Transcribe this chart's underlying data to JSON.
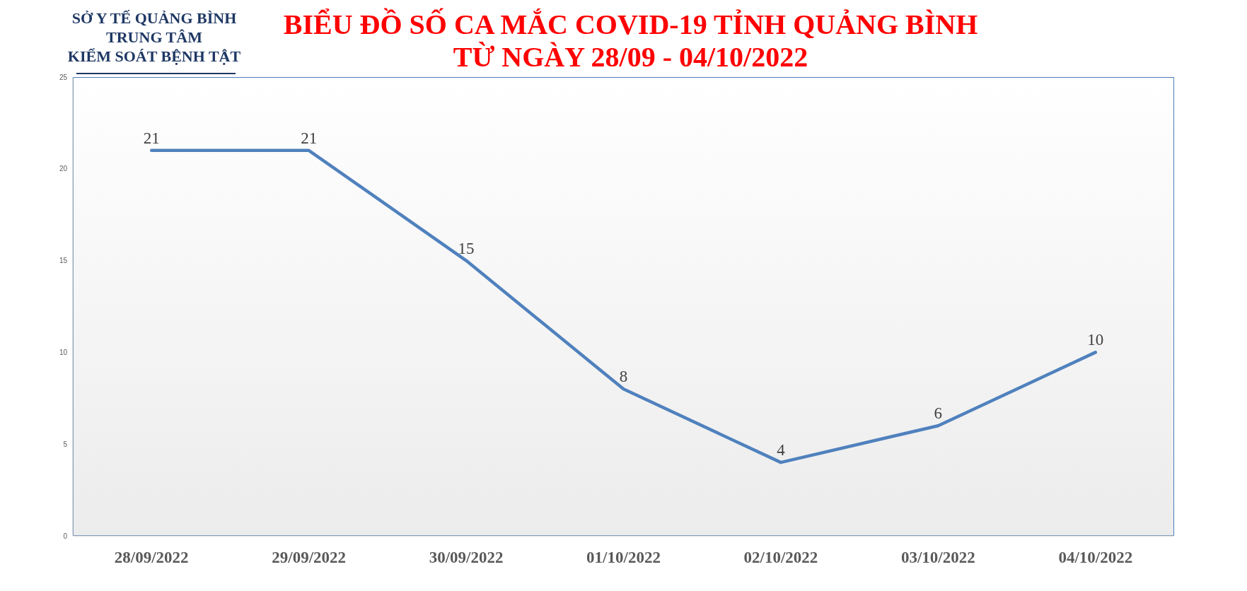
{
  "chart_data": {
    "type": "line",
    "title": "BIỂU ĐỒ SỐ CA MẮC COVID-19 TỈNH QUẢNG BÌNH\nTỪ NGÀY 28/09 - 04/10/2022",
    "annotations": [
      "SỞ Y TẾ QUẢNG BÌNH",
      "TRUNG TÂM",
      "KIỂM SOÁT BỆNH TẬT"
    ],
    "categories": [
      "28/09/2022",
      "29/09/2022",
      "30/09/2022",
      "01/10/2022",
      "02/10/2022",
      "03/10/2022",
      "04/10/2022"
    ],
    "series": [
      {
        "color": "#4f81bd",
        "values": [
          21,
          21,
          15,
          8,
          4,
          6,
          10
        ]
      }
    ],
    "ylim": [
      0,
      25
    ],
    "yticks": [
      0,
      5,
      10,
      15,
      20,
      25
    ],
    "grid": false,
    "legend": false,
    "marker": "none",
    "line_style": "solid",
    "data_labels": true
  }
}
